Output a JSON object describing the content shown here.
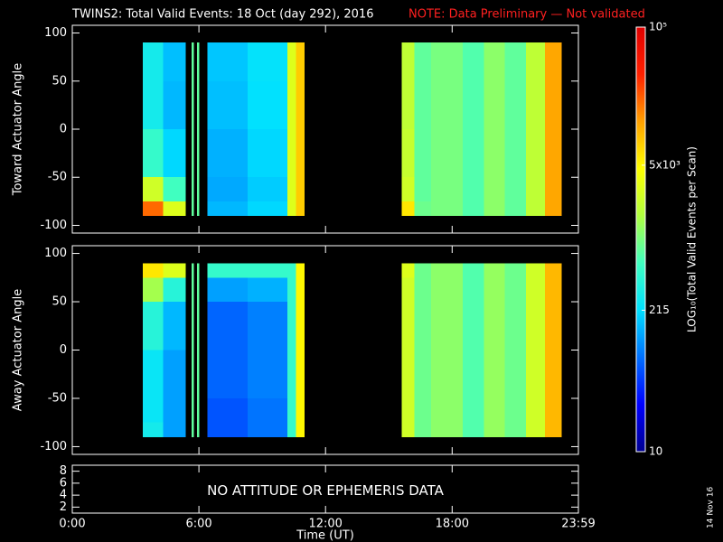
{
  "title": "TWINS2: Total Valid Events: 18 Oct (day 292), 2016",
  "note": "NOTE: Data Preliminary — Not validated",
  "stamp": "14 Nov 16",
  "chart_data": [
    {
      "type": "heatmap",
      "ylabel": "Toward Actuator Angle",
      "ylim": [
        -108,
        108
      ],
      "yticks": [
        100,
        50,
        0,
        -50,
        -100
      ],
      "x_edges": [
        3.35,
        4.3,
        5.37,
        5.65,
        5.75,
        5.92,
        6.02,
        6.4,
        8.3,
        10.2,
        10.6,
        11.0,
        15.6,
        16.2,
        17.0,
        18.5,
        19.5,
        20.5,
        21.5,
        22.4,
        23.2
      ],
      "y_edges": [
        -90,
        -75,
        -50,
        0,
        50,
        75,
        90
      ],
      "z": [
        [
          20000,
          3000,
          null,
          800,
          null,
          800,
          null,
          150,
          200,
          3000,
          8000,
          null,
          6000,
          900,
          1000,
          700,
          1200,
          800,
          2000,
          12000
        ],
        [
          2500,
          600,
          null,
          800,
          null,
          800,
          null,
          130,
          180,
          3000,
          8000,
          null,
          2500,
          800,
          1000,
          700,
          1200,
          800,
          2000,
          12000
        ],
        [
          500,
          200,
          null,
          800,
          null,
          800,
          null,
          140,
          200,
          3000,
          8000,
          null,
          2200,
          800,
          1000,
          700,
          1200,
          800,
          2000,
          12000
        ],
        [
          300,
          150,
          null,
          800,
          null,
          800,
          null,
          160,
          220,
          3000,
          8000,
          null,
          2000,
          800,
          1000,
          700,
          1200,
          800,
          2000,
          12000
        ],
        [
          300,
          160,
          null,
          800,
          null,
          800,
          null,
          170,
          230,
          3000,
          8000,
          null,
          2000,
          800,
          1000,
          700,
          1200,
          800,
          2000,
          12000
        ],
        [
          300,
          160,
          null,
          800,
          null,
          800,
          null,
          170,
          230,
          3000,
          8000,
          null,
          2000,
          800,
          1000,
          700,
          1200,
          800,
          2000,
          12000
        ]
      ]
    },
    {
      "type": "heatmap",
      "ylabel": "Away Actuator Angle",
      "ylim": [
        -108,
        108
      ],
      "yticks": [
        100,
        50,
        0,
        -50,
        -100
      ],
      "x_edges": [
        3.35,
        4.3,
        5.37,
        5.65,
        5.75,
        5.92,
        6.02,
        6.4,
        8.3,
        10.2,
        10.6,
        11.0,
        15.6,
        16.2,
        17.0,
        18.5,
        19.5,
        20.5,
        21.5,
        22.4,
        23.2
      ],
      "y_edges": [
        -90,
        -75,
        -50,
        0,
        50,
        75,
        90
      ],
      "z": [
        [
          300,
          120,
          null,
          800,
          null,
          800,
          null,
          60,
          80,
          500,
          5000,
          null,
          2500,
          900,
          1200,
          700,
          1300,
          900,
          2500,
          10000
        ],
        [
          250,
          120,
          null,
          800,
          null,
          800,
          null,
          60,
          80,
          500,
          5000,
          null,
          2500,
          900,
          1200,
          700,
          1300,
          900,
          2500,
          10000
        ],
        [
          250,
          120,
          null,
          800,
          null,
          800,
          null,
          70,
          90,
          500,
          5000,
          null,
          2500,
          900,
          1200,
          700,
          1300,
          900,
          2500,
          10000
        ],
        [
          400,
          150,
          null,
          800,
          null,
          800,
          null,
          70,
          90,
          500,
          5000,
          null,
          2500,
          900,
          1200,
          700,
          1300,
          900,
          2500,
          10000
        ],
        [
          1500,
          400,
          null,
          800,
          null,
          800,
          null,
          120,
          140,
          500,
          5000,
          null,
          2500,
          900,
          1200,
          700,
          1300,
          900,
          2500,
          10000
        ],
        [
          6000,
          3000,
          null,
          800,
          null,
          800,
          null,
          500,
          500,
          500,
          5000,
          null,
          3000,
          900,
          1200,
          700,
          1300,
          900,
          2500,
          10000
        ]
      ]
    },
    {
      "type": "text-panel",
      "annotation": "NO ATTITUDE OR EPHEMERIS DATA",
      "ylim": [
        1,
        9
      ],
      "yticks": [
        2,
        4,
        6,
        8
      ],
      "xlabel": "Time (UT)",
      "xlim": [
        0,
        23.983
      ],
      "xticks": [
        {
          "value": 0,
          "label": "0:00"
        },
        {
          "value": 6,
          "label": "6:00"
        },
        {
          "value": 12,
          "label": "12:00"
        },
        {
          "value": 18,
          "label": "18:00"
        },
        {
          "value": 23.983,
          "label": "23:59"
        }
      ]
    },
    {
      "type": "colorbar",
      "ylabel": "LOG₁₀(Total Valid Events per Scan)",
      "log": true,
      "lim": [
        10,
        100000
      ],
      "ticks": [
        10,
        215,
        {
          "value": 5000,
          "label": "5x10³"
        },
        {
          "value": 100000,
          "label": "10⁵"
        }
      ],
      "colors": [
        "#000090",
        "#0000ff",
        "#0070ff",
        "#00e0ff",
        "#40ffc0",
        "#b0ff40",
        "#ffff00",
        "#ffa000",
        "#ff2000",
        "#e00000"
      ]
    }
  ]
}
